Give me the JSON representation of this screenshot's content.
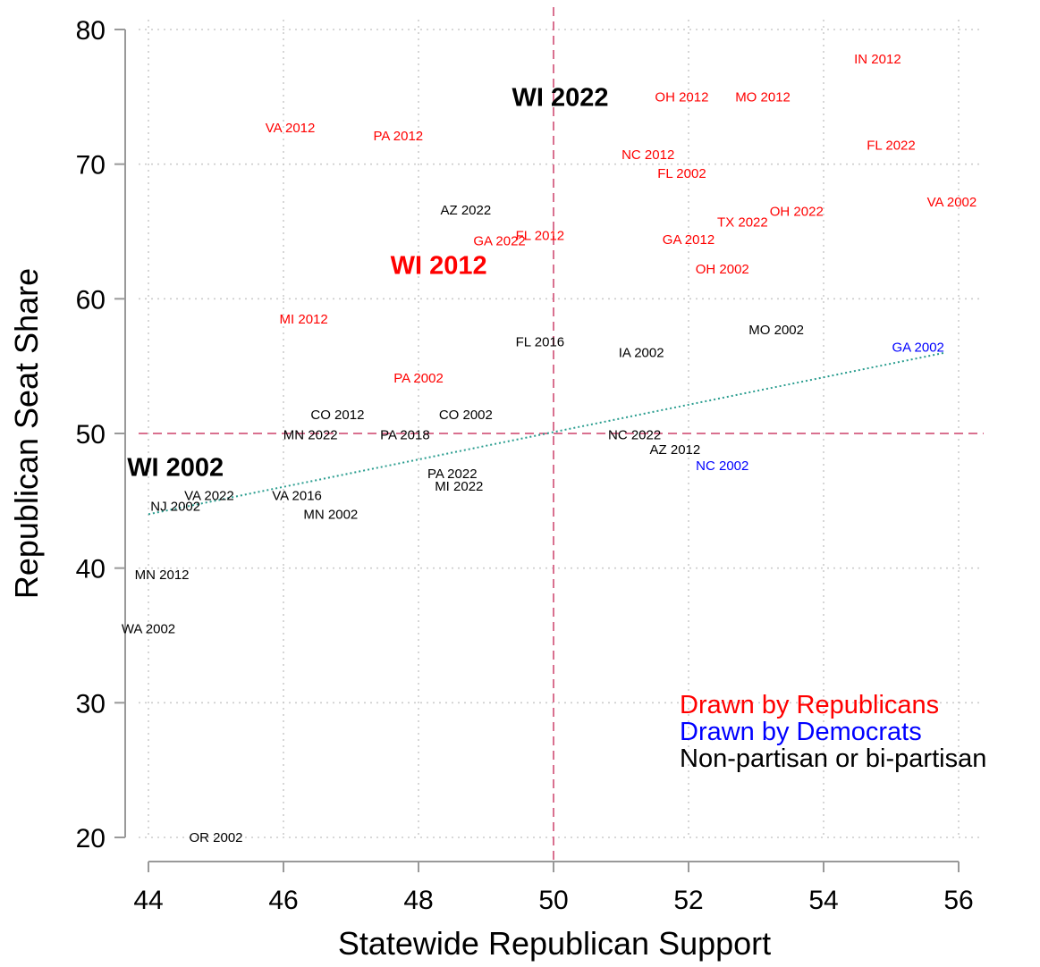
{
  "chart_data": {
    "type": "scatter",
    "xlabel": "Statewide Republican Support",
    "ylabel": "Republican Seat Share",
    "xlim": [
      44,
      56
    ],
    "ylim": [
      20,
      80
    ],
    "xticks": [
      44,
      46,
      48,
      50,
      52,
      54,
      56
    ],
    "yticks": [
      20,
      30,
      40,
      50,
      60,
      70,
      80
    ],
    "grid": true,
    "reference_lines": {
      "x": 50,
      "y": 50
    },
    "fit_line": {
      "from": [
        44,
        44
      ],
      "to": [
        55.8,
        56
      ]
    },
    "colors": {
      "republican": "#ff0000",
      "democrat": "#0000ff",
      "nonpartisan": "#000000",
      "reference": "#d9708f",
      "fit": "#2a9d8f",
      "grid": "#cccccc",
      "axis": "#999999"
    },
    "legend": {
      "position": "bottom-right",
      "items": [
        {
          "label": "Drawn by Republicans",
          "group": "republican"
        },
        {
          "label": "Drawn by Democrats",
          "group": "democrat"
        },
        {
          "label": "Non-partisan or bi-partisan",
          "group": "nonpartisan"
        }
      ]
    },
    "points": [
      {
        "label": "IN 2012",
        "x": 54.8,
        "y": 77.8,
        "group": "republican",
        "big": false
      },
      {
        "label": "OH 2012",
        "x": 51.9,
        "y": 75.0,
        "group": "republican",
        "big": false
      },
      {
        "label": "MO 2012",
        "x": 53.1,
        "y": 75.0,
        "group": "republican",
        "big": false
      },
      {
        "label": "WI 2022",
        "x": 50.1,
        "y": 75.0,
        "group": "nonpartisan",
        "big": true
      },
      {
        "label": "VA 2012",
        "x": 46.1,
        "y": 72.7,
        "group": "republican",
        "big": false
      },
      {
        "label": "PA 2012",
        "x": 47.7,
        "y": 72.1,
        "group": "republican",
        "big": false
      },
      {
        "label": "FL 2022",
        "x": 55.0,
        "y": 71.4,
        "group": "republican",
        "big": false
      },
      {
        "label": "NC 2012",
        "x": 51.4,
        "y": 70.7,
        "group": "republican",
        "big": false
      },
      {
        "label": "FL 2002",
        "x": 51.9,
        "y": 69.3,
        "group": "republican",
        "big": false
      },
      {
        "label": "VA 2002",
        "x": 55.9,
        "y": 67.2,
        "group": "republican",
        "big": false
      },
      {
        "label": "OH 2022",
        "x": 53.6,
        "y": 66.5,
        "group": "republican",
        "big": false
      },
      {
        "label": "AZ 2022",
        "x": 48.7,
        "y": 66.6,
        "group": "nonpartisan",
        "big": false
      },
      {
        "label": "TX 2022",
        "x": 52.8,
        "y": 65.7,
        "group": "republican",
        "big": false
      },
      {
        "label": "FL 2012",
        "x": 49.8,
        "y": 64.7,
        "group": "republican",
        "big": false
      },
      {
        "label": "GA 2022",
        "x": 49.2,
        "y": 64.3,
        "group": "republican",
        "big": false
      },
      {
        "label": "GA 2012",
        "x": 52.0,
        "y": 64.4,
        "group": "republican",
        "big": false
      },
      {
        "label": "WI 2012",
        "x": 48.3,
        "y": 62.5,
        "group": "republican",
        "big": true
      },
      {
        "label": "OH 2002",
        "x": 52.5,
        "y": 62.2,
        "group": "republican",
        "big": false
      },
      {
        "label": "MI 2012",
        "x": 46.3,
        "y": 58.5,
        "group": "republican",
        "big": false
      },
      {
        "label": "MO 2002",
        "x": 53.3,
        "y": 57.7,
        "group": "nonpartisan",
        "big": false
      },
      {
        "label": "FL 2016",
        "x": 49.8,
        "y": 56.8,
        "group": "nonpartisan",
        "big": false
      },
      {
        "label": "GA 2002",
        "x": 55.4,
        "y": 56.4,
        "group": "democrat",
        "big": false
      },
      {
        "label": "IA 2002",
        "x": 51.3,
        "y": 56.0,
        "group": "nonpartisan",
        "big": false
      },
      {
        "label": "PA 2002",
        "x": 48.0,
        "y": 54.1,
        "group": "republican",
        "big": false
      },
      {
        "label": "CO 2012",
        "x": 46.8,
        "y": 51.4,
        "group": "nonpartisan",
        "big": false
      },
      {
        "label": "CO 2002",
        "x": 48.7,
        "y": 51.4,
        "group": "nonpartisan",
        "big": false
      },
      {
        "label": "MN 2022",
        "x": 46.4,
        "y": 49.9,
        "group": "nonpartisan",
        "big": false
      },
      {
        "label": "PA 2018",
        "x": 47.8,
        "y": 49.9,
        "group": "nonpartisan",
        "big": false
      },
      {
        "label": "NC 2022",
        "x": 51.2,
        "y": 49.9,
        "group": "nonpartisan",
        "big": false
      },
      {
        "label": "AZ 2012",
        "x": 51.8,
        "y": 48.8,
        "group": "nonpartisan",
        "big": false
      },
      {
        "label": "WI 2002",
        "x": 44.4,
        "y": 47.5,
        "group": "nonpartisan",
        "big": true
      },
      {
        "label": "NC 2002",
        "x": 52.5,
        "y": 47.6,
        "group": "democrat",
        "big": false
      },
      {
        "label": "PA 2022",
        "x": 48.5,
        "y": 47.0,
        "group": "nonpartisan",
        "big": false
      },
      {
        "label": "MI 2022",
        "x": 48.6,
        "y": 46.1,
        "group": "nonpartisan",
        "big": false
      },
      {
        "label": "VA 2022",
        "x": 44.9,
        "y": 45.4,
        "group": "nonpartisan",
        "big": false
      },
      {
        "label": "VA 2016",
        "x": 46.2,
        "y": 45.4,
        "group": "nonpartisan",
        "big": false
      },
      {
        "label": "NJ 2002",
        "x": 44.4,
        "y": 44.6,
        "group": "nonpartisan",
        "big": false
      },
      {
        "label": "MN 2002",
        "x": 46.7,
        "y": 44.0,
        "group": "nonpartisan",
        "big": false
      },
      {
        "label": "MN 2012",
        "x": 44.2,
        "y": 39.5,
        "group": "nonpartisan",
        "big": false
      },
      {
        "label": "WA 2002",
        "x": 44.0,
        "y": 35.5,
        "group": "nonpartisan",
        "big": false
      },
      {
        "label": "OR 2002",
        "x": 45.0,
        "y": 20.0,
        "group": "nonpartisan",
        "big": false
      }
    ]
  }
}
